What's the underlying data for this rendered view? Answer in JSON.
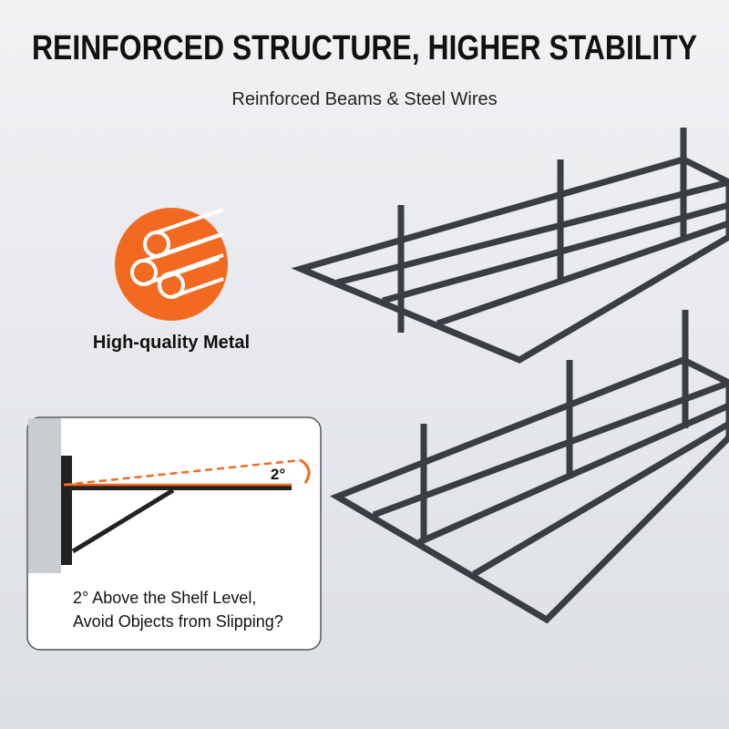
{
  "header": {
    "title": "REINFORCED STRUCTURE, HIGHER STABILITY",
    "subtitle": "Reinforced Beams & Steel Wires"
  },
  "feature": {
    "label": "High-quality Metal"
  },
  "inset": {
    "angle": "2°",
    "caption_line1": "2° Above the Shelf Level,",
    "caption_line2": "Avoid Objects from Slipping?"
  }
}
